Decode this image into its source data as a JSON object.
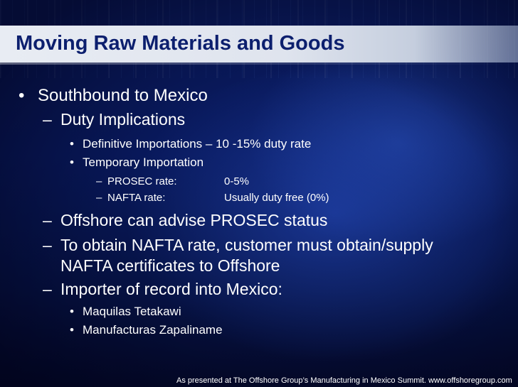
{
  "slide": {
    "title": "Moving Raw Materials and Goods",
    "bullets": {
      "b1": "Southbound to Mexico",
      "b1_1": "Duty Implications",
      "b1_1_1": "Definitive Importations – 10 -15% duty rate",
      "b1_1_2": "Temporary Importation",
      "b1_1_2_1": {
        "label": "PROSEC rate:",
        "value": "0-5%"
      },
      "b1_1_2_2": {
        "label": "NAFTA rate:",
        "value": "Usually duty free (0%)"
      },
      "b1_2": "Offshore can advise PROSEC status",
      "b1_3_line1": "To obtain NAFTA rate, customer must obtain/supply",
      "b1_3_line2": "NAFTA certificates to Offshore",
      "b1_4": "Importer of record into Mexico:",
      "b1_4_1": "Maquilas Tetakawi",
      "b1_4_2": "Manufacturas Zapaliname"
    },
    "markers": {
      "bullet": "•",
      "dash": "–"
    },
    "footer": "As presented at The Offshore Group’s Manufacturing in Mexico Summit. www.offshoregroup.com"
  }
}
